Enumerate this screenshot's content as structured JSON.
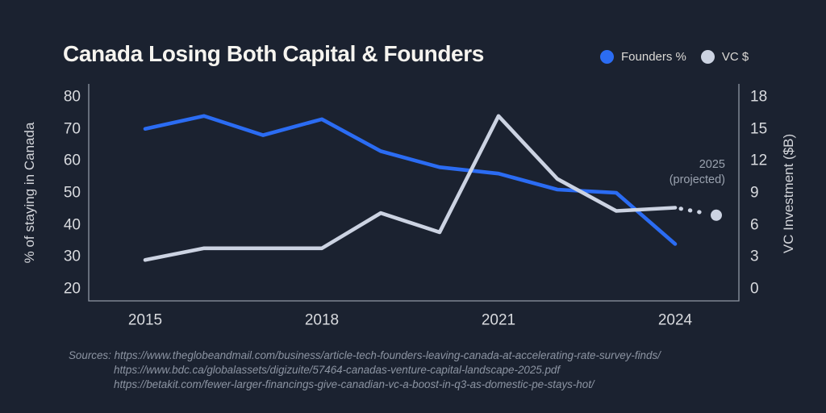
{
  "title": "Canada Losing Both Capital & Founders",
  "legend": [
    {
      "label": "Founders %",
      "color": "#2b6cf3"
    },
    {
      "label": "VC $",
      "color": "#ccd3e2"
    }
  ],
  "annotation": {
    "line1": "2025",
    "line2": "(projected)"
  },
  "sources": {
    "prefix": "Sources: ",
    "lines": [
      "https://www.theglobeandmail.com/business/article-tech-founders-leaving-canada-at-accelerating-rate-survey-finds/",
      "https://www.bdc.ca/globalassets/digizuite/57464-canadas-venture-capital-landscape-2025.pdf",
      "https://betakit.com/fewer-larger-financings-give-canadian-vc-a-boost-in-q3-as-domestic-pe-stays-hot/"
    ]
  },
  "colors": {
    "background": "#1b2230",
    "spine": "#9097a4",
    "tick_text": "#d8dade",
    "founders_line": "#2b6cf3",
    "vc_line": "#ccd3e2",
    "annotation_text": "#9aa2af",
    "sources_text": "#8c94a2"
  },
  "chart_data": {
    "type": "line",
    "x": [
      2015,
      2016,
      2017,
      2018,
      2019,
      2020,
      2021,
      2022,
      2023,
      2024
    ],
    "x_tick_labels": [
      "2015",
      "2018",
      "2021",
      "2024"
    ],
    "grid": false,
    "legend_position": "top-right",
    "left_axis": {
      "label": "% of staying in Canada",
      "ticks": [
        80,
        70,
        60,
        50,
        40,
        30,
        20
      ],
      "range": [
        20,
        80
      ]
    },
    "right_axis": {
      "label": "VC Investment ($B)",
      "ticks": [
        18,
        15,
        12,
        9,
        6,
        3,
        0
      ],
      "range": [
        0,
        18
      ]
    },
    "series": [
      {
        "name": "Founders %",
        "axis": "left",
        "color": "#2b6cf3",
        "style": "solid",
        "values": [
          70,
          74,
          68,
          73,
          63,
          58,
          56,
          51,
          50,
          34
        ]
      },
      {
        "name": "VC $",
        "axis": "right",
        "color": "#ccd3e2",
        "style": "solid",
        "values": [
          2.7,
          3.8,
          3.8,
          3.8,
          7.1,
          5.3,
          16.2,
          10.3,
          7.3,
          7.6
        ],
        "projection": {
          "year": 2025,
          "value": 6.9,
          "style": "dotted"
        }
      }
    ]
  }
}
